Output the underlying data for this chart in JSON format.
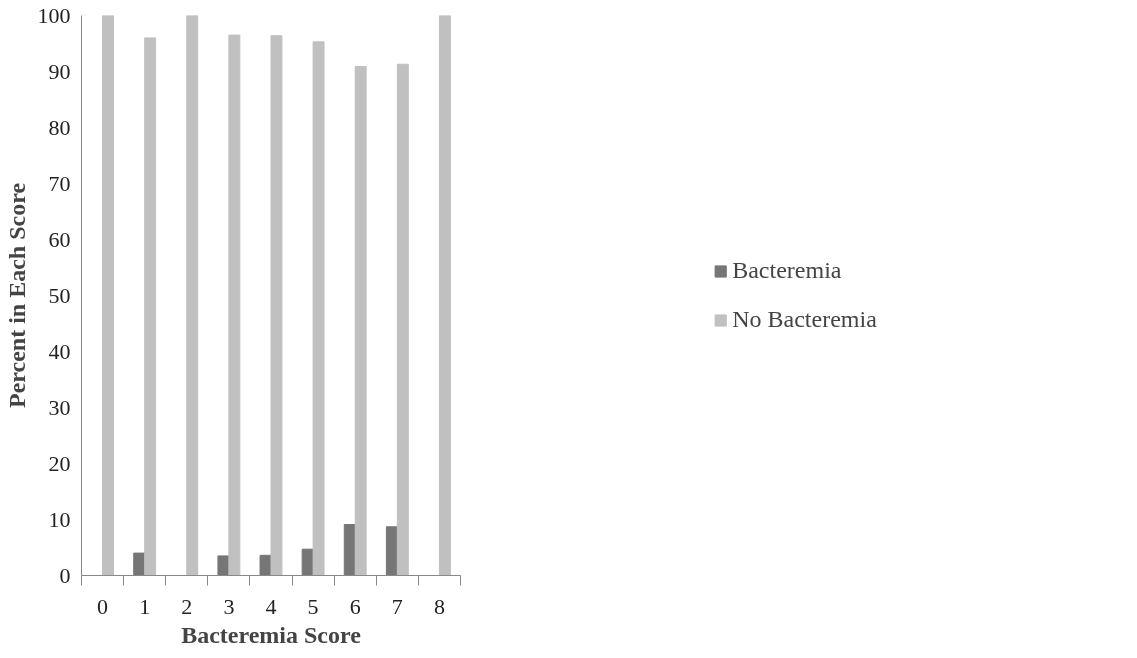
{
  "chart_data": {
    "type": "bar",
    "xlabel": "Bacteremia Score",
    "ylabel": "Percent in Each Score",
    "categories": [
      "0",
      "1",
      "2",
      "3",
      "4",
      "5",
      "6",
      "7",
      "8"
    ],
    "series": [
      {
        "name": "Bacteremia",
        "color": "#767676",
        "values": [
          0,
          4,
          0,
          3.5,
          3.6,
          4.7,
          9.1,
          8.7,
          0
        ]
      },
      {
        "name": "No Bacteremia",
        "color": "#c0c0c0",
        "values": [
          100,
          96,
          100,
          96.5,
          96.4,
          95.3,
          90.9,
          91.3,
          100
        ]
      }
    ],
    "ylim": [
      0,
      100
    ],
    "yticks": [
      0,
      10,
      20,
      30,
      40,
      50,
      60,
      70,
      80,
      90,
      100
    ],
    "grid": false,
    "legend": "right"
  }
}
